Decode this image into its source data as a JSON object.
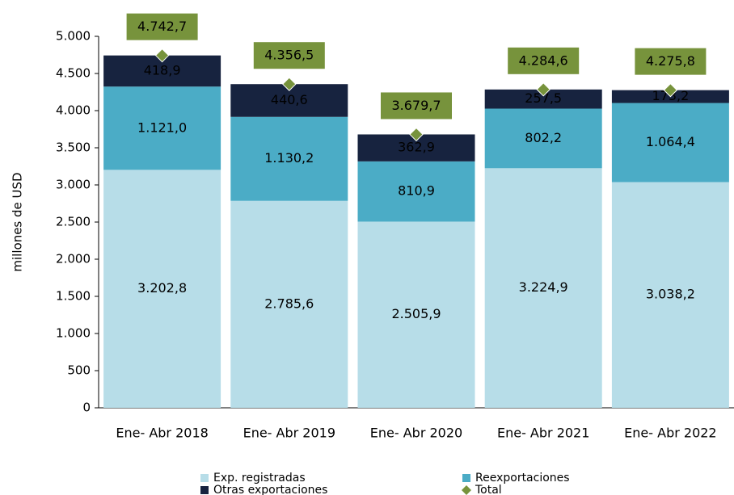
{
  "chart_data": {
    "type": "stacked_bar",
    "y_label": "millones de  USD",
    "categories": [
      "Ene- Abr 2018",
      "Ene- Abr 2019",
      "Ene- Abr 2020",
      "Ene- Abr 2021",
      "Ene- Abr 2022"
    ],
    "series": [
      {
        "name": "Exp. registradas",
        "color": "#b7dde8",
        "values": [
          3202.8,
          2785.6,
          2505.9,
          3224.9,
          3038.2
        ],
        "value_labels": [
          "3.202,8",
          "2.785,6",
          "2.505,9",
          "3.224,9",
          "3.038,2"
        ]
      },
      {
        "name": "Reexportaciones",
        "color": "#4bacc6",
        "values": [
          1121.0,
          1130.2,
          810.9,
          802.2,
          1064.4
        ],
        "value_labels": [
          "1.121,0",
          "1.130,2",
          "810,9",
          "802,2",
          "1.064,4"
        ]
      },
      {
        "name": "Otras exportaciones",
        "color": "#17233f",
        "values": [
          418.9,
          440.6,
          362.9,
          257.5,
          173.2
        ],
        "value_labels": [
          "418,9",
          "440,6",
          "362,9",
          "257,5",
          "173,2"
        ]
      }
    ],
    "total": {
      "name": "Total",
      "color": "#77933c",
      "values": [
        4742.7,
        4356.5,
        3679.7,
        4284.6,
        4275.8
      ],
      "value_labels": [
        "4.742,7",
        "4.356,5",
        "3.679,7",
        "4.284,6",
        "4.275,8"
      ]
    },
    "ylim": [
      0,
      5000
    ],
    "yticks": [
      0,
      500,
      {
        "value": 1000,
        "label": "1.000"
      },
      {
        "value": 1500,
        "label": "1.500"
      },
      {
        "value": 2000,
        "label": "2.000"
      },
      {
        "value": 2500,
        "label": "2.500"
      },
      {
        "value": 3000,
        "label": "3.000"
      },
      {
        "value": 3500,
        "label": "3.500"
      },
      {
        "value": 4000,
        "label": "4.000"
      },
      {
        "value": 4500,
        "label": "4.500"
      },
      {
        "value": 5000,
        "label": "5.000"
      }
    ]
  }
}
